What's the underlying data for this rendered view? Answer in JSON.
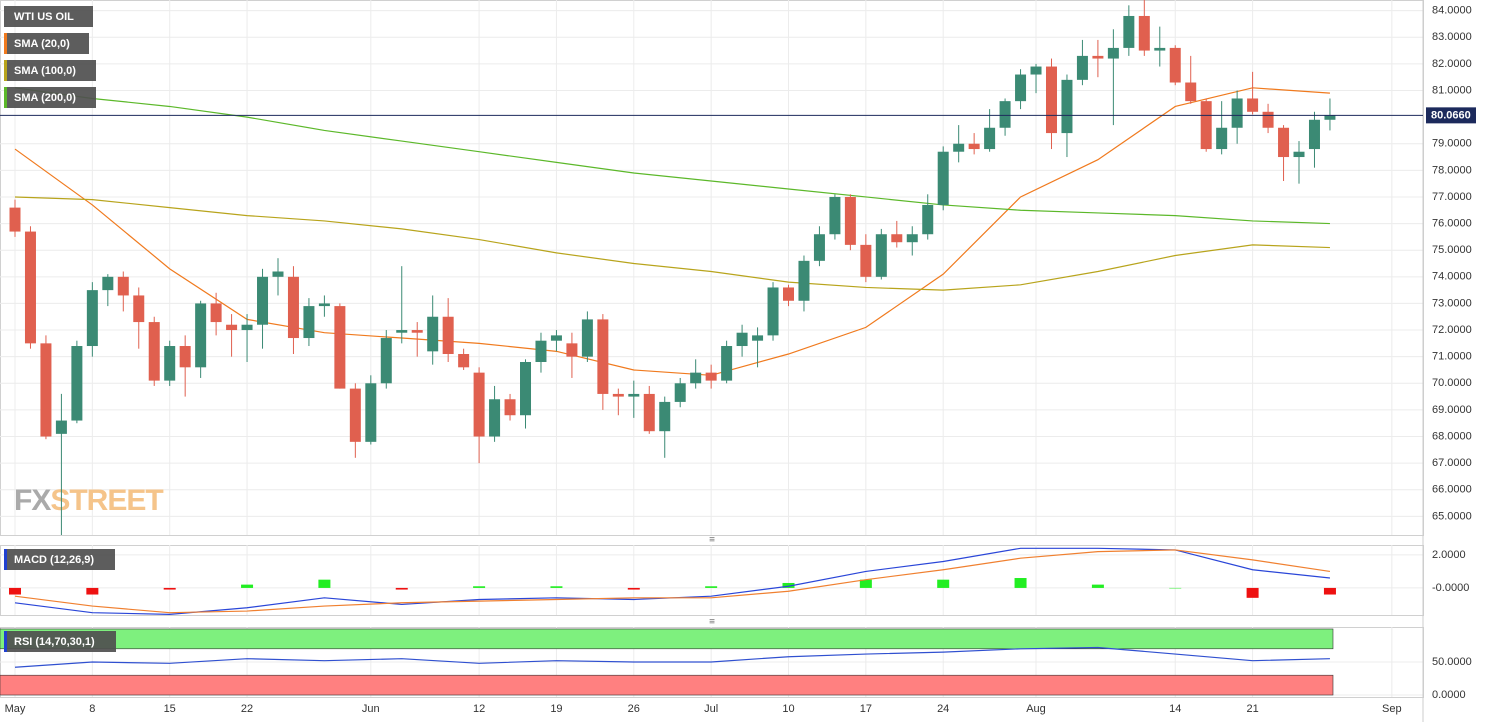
{
  "chart_data": [
    {
      "type": "candlestick",
      "title": "WTI US OIL",
      "categories": [
        "May 1",
        "May 2",
        "May 3",
        "May 4",
        "May 5",
        "May 8",
        "May 9",
        "May 10",
        "May 11",
        "May 12",
        "May 15",
        "May 16",
        "May 17",
        "May 18",
        "May 19",
        "May 22",
        "May 23",
        "May 24",
        "May 25",
        "May 26",
        "May 29",
        "May 30",
        "May 31",
        "Jun 1",
        "Jun 2",
        "Jun 5",
        "Jun 6",
        "Jun 7",
        "Jun 8",
        "Jun 9",
        "Jun 12",
        "Jun 13",
        "Jun 14",
        "Jun 15",
        "Jun 16",
        "Jun 19",
        "Jun 20",
        "Jun 21",
        "Jun 22",
        "Jun 23",
        "Jun 26",
        "Jun 27",
        "Jun 28",
        "Jun 29",
        "Jun 30",
        "Jul 3",
        "Jul 4",
        "Jul 5",
        "Jul 6",
        "Jul 7",
        "Jul 10",
        "Jul 11",
        "Jul 12",
        "Jul 13",
        "Jul 14",
        "Jul 17",
        "Jul 18",
        "Jul 19",
        "Jul 20",
        "Jul 21",
        "Jul 24",
        "Jul 25",
        "Jul 26",
        "Jul 27",
        "Jul 28",
        "Jul 31",
        "Aug 1",
        "Aug 2",
        "Aug 3",
        "Aug 4",
        "Aug 7",
        "Aug 8",
        "Aug 9",
        "Aug 10",
        "Aug 11",
        "Aug 14",
        "Aug 15",
        "Aug 16",
        "Aug 17",
        "Aug 18",
        "Aug 21",
        "Aug 22",
        "Aug 23",
        "Aug 24",
        "Aug 25",
        "Aug 28",
        "Aug 29",
        "Aug 30",
        "Aug 31",
        "Sep 1"
      ],
      "ohlc": [
        [
          76.6,
          76.9,
          75.5,
          75.7
        ],
        [
          75.7,
          75.9,
          71.3,
          71.5
        ],
        [
          71.5,
          71.8,
          67.9,
          68.0
        ],
        [
          68.1,
          69.6,
          64.3,
          68.6
        ],
        [
          68.6,
          71.6,
          68.5,
          71.4
        ],
        [
          71.4,
          73.8,
          71.0,
          73.5
        ],
        [
          73.5,
          74.1,
          72.9,
          74.0
        ],
        [
          74.0,
          74.2,
          72.7,
          73.3
        ],
        [
          73.3,
          73.6,
          71.3,
          72.3
        ],
        [
          72.3,
          72.5,
          69.9,
          70.1
        ],
        [
          70.1,
          71.6,
          69.9,
          71.4
        ],
        [
          71.4,
          71.8,
          69.5,
          70.6
        ],
        [
          70.6,
          73.1,
          70.2,
          73.0
        ],
        [
          73.0,
          73.4,
          71.8,
          72.3
        ],
        [
          72.2,
          72.6,
          71.0,
          72.0
        ],
        [
          72.0,
          72.6,
          70.8,
          72.2
        ],
        [
          72.2,
          74.3,
          71.3,
          74.0
        ],
        [
          74.0,
          74.7,
          73.3,
          74.2
        ],
        [
          74.0,
          74.4,
          71.1,
          71.7
        ],
        [
          71.7,
          73.2,
          71.4,
          72.9
        ],
        [
          72.9,
          73.3,
          72.5,
          73.0
        ],
        [
          72.9,
          73.0,
          69.8,
          69.8
        ],
        [
          69.8,
          70.0,
          67.2,
          67.8
        ],
        [
          67.8,
          70.3,
          67.7,
          70.0
        ],
        [
          70.0,
          72.0,
          69.8,
          71.7
        ],
        [
          71.9,
          74.4,
          71.5,
          72.0
        ],
        [
          72.0,
          72.3,
          71.0,
          71.9
        ],
        [
          71.2,
          73.3,
          70.7,
          72.5
        ],
        [
          72.5,
          73.2,
          70.8,
          71.1
        ],
        [
          71.1,
          71.3,
          70.5,
          70.6
        ],
        [
          70.4,
          70.6,
          67.0,
          68.0
        ],
        [
          68.0,
          69.9,
          67.8,
          69.4
        ],
        [
          69.4,
          69.6,
          68.6,
          68.8
        ],
        [
          68.8,
          70.9,
          68.3,
          70.8
        ],
        [
          70.8,
          71.9,
          70.4,
          71.6
        ],
        [
          71.6,
          72.0,
          71.2,
          71.8
        ],
        [
          71.5,
          71.9,
          70.2,
          71.0
        ],
        [
          71.0,
          72.7,
          70.8,
          72.4
        ],
        [
          72.4,
          72.6,
          69.0,
          69.6
        ],
        [
          69.6,
          69.8,
          68.8,
          69.5
        ],
        [
          69.5,
          70.1,
          68.7,
          69.6
        ],
        [
          69.6,
          69.9,
          68.1,
          68.2
        ],
        [
          68.2,
          69.5,
          67.2,
          69.3
        ],
        [
          69.3,
          70.2,
          69.1,
          70.0
        ],
        [
          70.0,
          70.9,
          69.8,
          70.4
        ],
        [
          70.4,
          70.7,
          69.8,
          70.1
        ],
        [
          70.1,
          71.6,
          70.0,
          71.4
        ],
        [
          71.4,
          72.2,
          71.0,
          71.9
        ],
        [
          71.6,
          72.1,
          70.6,
          71.8
        ],
        [
          71.8,
          73.8,
          71.6,
          73.6
        ],
        [
          73.6,
          73.7,
          72.9,
          73.1
        ],
        [
          73.1,
          74.8,
          72.7,
          74.6
        ],
        [
          74.6,
          75.9,
          74.4,
          75.6
        ],
        [
          75.6,
          77.1,
          75.4,
          77.0
        ],
        [
          77.0,
          77.1,
          75.0,
          75.2
        ],
        [
          75.2,
          75.6,
          73.8,
          74.0
        ],
        [
          74.0,
          75.8,
          73.9,
          75.6
        ],
        [
          75.6,
          76.1,
          75.1,
          75.3
        ],
        [
          75.3,
          75.9,
          74.8,
          75.6
        ],
        [
          75.6,
          77.1,
          75.4,
          76.7
        ],
        [
          76.7,
          78.9,
          76.5,
          78.7
        ],
        [
          78.7,
          79.7,
          78.3,
          79.0
        ],
        [
          79.0,
          79.4,
          78.6,
          78.8
        ],
        [
          78.8,
          80.3,
          78.7,
          79.6
        ],
        [
          79.6,
          80.7,
          79.3,
          80.6
        ],
        [
          80.6,
          81.8,
          80.3,
          81.6
        ],
        [
          81.6,
          82.0,
          80.9,
          81.9
        ],
        [
          81.9,
          82.2,
          78.8,
          79.4
        ],
        [
          79.4,
          81.6,
          78.5,
          81.4
        ],
        [
          81.4,
          82.9,
          81.2,
          82.3
        ],
        [
          82.3,
          82.9,
          81.5,
          82.2
        ],
        [
          82.2,
          83.3,
          79.7,
          82.6
        ],
        [
          82.6,
          84.2,
          82.3,
          83.8
        ],
        [
          83.8,
          84.4,
          82.3,
          82.5
        ],
        [
          82.5,
          83.4,
          81.9,
          82.6
        ],
        [
          82.6,
          82.7,
          81.2,
          81.3
        ],
        [
          81.3,
          82.3,
          80.5,
          80.6
        ],
        [
          80.6,
          80.7,
          78.7,
          78.8
        ],
        [
          78.8,
          80.6,
          78.6,
          79.6
        ],
        [
          79.6,
          81.0,
          79.0,
          80.7
        ],
        [
          80.7,
          81.7,
          80.1,
          80.2
        ],
        [
          80.2,
          80.5,
          79.4,
          79.6
        ],
        [
          79.6,
          79.7,
          77.6,
          78.5
        ],
        [
          78.5,
          79.1,
          77.5,
          78.7
        ],
        [
          78.8,
          80.2,
          78.1,
          79.9
        ],
        [
          79.9,
          80.7,
          79.5,
          80.066
        ],
        null,
        null,
        null,
        null
      ],
      "up_color": "#3b8a74",
      "down_color": "#e0604f",
      "series": [
        {
          "name": "SMA (20,0)",
          "color": "#f07a1e",
          "x": [
            "May 1",
            "May 8",
            "May 15",
            "May 22",
            "May 29",
            "Jun 5",
            "Jun 12",
            "Jun 19",
            "Jun 26",
            "Jul 3",
            "Jul 10",
            "Jul 17",
            "Jul 24",
            "Jul 31",
            "Aug 7",
            "Aug 14",
            "Aug 21",
            "Aug 28"
          ],
          "values": [
            78.8,
            76.7,
            74.3,
            72.4,
            71.9,
            71.7,
            71.5,
            71.2,
            70.5,
            70.3,
            71.1,
            72.1,
            74.1,
            77.0,
            78.4,
            80.4,
            81.1,
            80.9
          ]
        },
        {
          "name": "SMA (100,0)",
          "color": "#b8a41c",
          "x": [
            "May 1",
            "May 8",
            "May 15",
            "May 22",
            "May 29",
            "Jun 5",
            "Jun 12",
            "Jun 19",
            "Jun 26",
            "Jul 3",
            "Jul 10",
            "Jul 17",
            "Jul 24",
            "Jul 31",
            "Aug 7",
            "Aug 14",
            "Aug 21",
            "Aug 28"
          ],
          "values": [
            77.0,
            76.9,
            76.6,
            76.3,
            76.1,
            75.8,
            75.4,
            74.9,
            74.5,
            74.2,
            73.8,
            73.6,
            73.5,
            73.7,
            74.2,
            74.8,
            75.2,
            75.1
          ]
        },
        {
          "name": "SMA (200,0)",
          "color": "#5cb82a",
          "x": [
            "May 1",
            "May 8",
            "May 15",
            "May 22",
            "May 29",
            "Jun 5",
            "Jun 12",
            "Jun 19",
            "Jun 26",
            "Jul 3",
            "Jul 10",
            "Jul 17",
            "Jul 24",
            "Jul 31",
            "Aug 7",
            "Aug 14",
            "Aug 21",
            "Aug 28"
          ],
          "values": [
            81.1,
            80.7,
            80.4,
            80.0,
            79.5,
            79.1,
            78.7,
            78.3,
            77.9,
            77.6,
            77.3,
            77.0,
            76.7,
            76.5,
            76.4,
            76.3,
            76.1,
            76.0
          ]
        }
      ],
      "last_price": {
        "value": 80.066,
        "label": "80.0660"
      },
      "ylim": [
        64.3,
        84.4
      ],
      "yticks": [
        {
          "value": 84,
          "label": "84.0000"
        },
        {
          "value": 83,
          "label": "83.0000"
        },
        {
          "value": 82,
          "label": "82.0000"
        },
        {
          "value": 81,
          "label": "81.0000"
        },
        {
          "value": 79,
          "label": "79.0000"
        },
        {
          "value": 78,
          "label": "78.0000"
        },
        {
          "value": 77,
          "label": "77.0000"
        },
        {
          "value": 76,
          "label": "76.0000"
        },
        {
          "value": 75,
          "label": "75.0000"
        },
        {
          "value": 74,
          "label": "74.0000"
        },
        {
          "value": 73,
          "label": "73.0000"
        },
        {
          "value": 72,
          "label": "72.0000"
        },
        {
          "value": 71,
          "label": "71.0000"
        },
        {
          "value": 70,
          "label": "70.0000"
        },
        {
          "value": 69,
          "label": "69.0000"
        },
        {
          "value": 68,
          "label": "68.0000"
        },
        {
          "value": 67,
          "label": "67.0000"
        },
        {
          "value": 66,
          "label": "66.0000"
        },
        {
          "value": 65,
          "label": "65.0000"
        }
      ],
      "watermark": [
        "FX",
        "STREET"
      ],
      "grid": true
    },
    {
      "type": "macd",
      "title": "MACD (12,26,9)",
      "title_color": "#2040d0",
      "x": [
        "May 1",
        "May 8",
        "May 15",
        "May 22",
        "May 29",
        "Jun 5",
        "Jun 12",
        "Jun 19",
        "Jun 26",
        "Jul 3",
        "Jul 10",
        "Jul 17",
        "Jul 24",
        "Jul 31",
        "Aug 7",
        "Aug 14",
        "Aug 21",
        "Aug 28"
      ],
      "series": [
        {
          "color": "#2a46d8",
          "values": [
            -0.9,
            -1.5,
            -1.6,
            -1.2,
            -0.6,
            -1.0,
            -0.7,
            -0.6,
            -0.7,
            -0.5,
            0.1,
            1.0,
            1.6,
            2.4,
            2.4,
            2.3,
            1.1,
            0.6
          ]
        },
        {
          "color": "#f08030",
          "values": [
            -0.5,
            -1.1,
            -1.5,
            -1.4,
            -1.1,
            -0.9,
            -0.8,
            -0.7,
            -0.6,
            -0.6,
            -0.2,
            0.5,
            1.1,
            1.8,
            2.2,
            2.3,
            1.7,
            1.0
          ]
        }
      ],
      "bars": {
        "values": [
          -0.4,
          -0.4,
          -0.1,
          0.2,
          0.5,
          -0.1,
          0.1,
          0.1,
          -0.1,
          0.1,
          0.3,
          0.5,
          0.5,
          0.6,
          0.2,
          0,
          -0.6,
          -0.4
        ],
        "up_color": "#22ee22",
        "down_color": "#ee1111"
      },
      "ylim": [
        -1.64,
        2.6
      ],
      "yticks": [
        {
          "value": 2,
          "label": "2.0000"
        },
        {
          "value": 0,
          "label": "-0.0000"
        }
      ]
    },
    {
      "type": "rsi",
      "title": "RSI (14,70,30,1)",
      "title_color": "#2040d0",
      "x": [
        "May 1",
        "May 8",
        "May 15",
        "May 22",
        "May 29",
        "Jun 5",
        "Jun 12",
        "Jun 19",
        "Jun 26",
        "Jul 3",
        "Jul 10",
        "Jul 17",
        "Jul 24",
        "Jul 31",
        "Aug 7",
        "Aug 14",
        "Aug 21",
        "Aug 28"
      ],
      "series": [
        {
          "color": "#3050d0",
          "values": [
            42,
            50,
            48,
            55,
            52,
            55,
            48,
            52,
            50,
            50,
            58,
            62,
            65,
            70,
            72,
            62,
            52,
            55
          ]
        }
      ],
      "bands": [
        {
          "from": 70,
          "to": 100,
          "color": "#7ef07e"
        },
        {
          "from": 0,
          "to": 30,
          "color": "#ff8080"
        }
      ],
      "ylim": [
        -3,
        103
      ],
      "yticks": [
        {
          "value": 50,
          "label": "50.0000"
        },
        {
          "value": 0,
          "label": "0.0000"
        }
      ],
      "xticks": [
        {
          "value": "May 1",
          "label": "May"
        },
        {
          "value": "May 8",
          "label": "8"
        },
        {
          "value": "May 15",
          "label": "15"
        },
        {
          "value": "May 22",
          "label": "22"
        },
        {
          "value": "Jun 1",
          "label": "Jun"
        },
        {
          "value": "Jun 12",
          "label": "12"
        },
        {
          "value": "Jun 19",
          "label": "19"
        },
        {
          "value": "Jun 26",
          "label": "26"
        },
        {
          "value": "Jul 3",
          "label": "Jul"
        },
        {
          "value": "Jul 10",
          "label": "10"
        },
        {
          "value": "Jul 17",
          "label": "17"
        },
        {
          "value": "Jul 24",
          "label": "24"
        },
        {
          "value": "Aug 1",
          "label": "Aug"
        },
        {
          "value": "Aug 14",
          "label": "14"
        },
        {
          "value": "Aug 21",
          "label": "21"
        },
        {
          "value": "Sep 1",
          "label": "Sep"
        }
      ]
    }
  ]
}
